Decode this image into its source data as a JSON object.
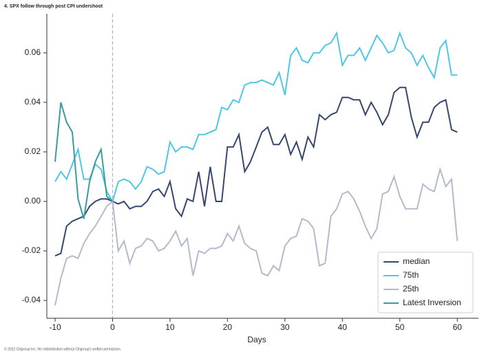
{
  "chart_data": {
    "type": "line",
    "title": "4. SPX follow through post CPI undershoot",
    "footnote": "© 2022 Citigroup Inc. No redistribution without Citigroup's written permission.",
    "x_label": "Days",
    "x": [
      -10,
      -9,
      -8,
      -7,
      -6,
      -5,
      -4,
      -3,
      -2,
      -1,
      0,
      1,
      2,
      3,
      4,
      5,
      6,
      7,
      8,
      9,
      10,
      11,
      12,
      13,
      14,
      15,
      16,
      17,
      18,
      19,
      20,
      21,
      22,
      23,
      24,
      25,
      26,
      27,
      28,
      29,
      30,
      31,
      32,
      33,
      34,
      35,
      36,
      37,
      38,
      39,
      40,
      41,
      42,
      43,
      44,
      45,
      46,
      47,
      48,
      49,
      50,
      51,
      52,
      53,
      54,
      55,
      56,
      57,
      58,
      59,
      60
    ],
    "series": [
      {
        "name": "median",
        "color": "#34466f",
        "values": [
          -0.022,
          -0.021,
          -0.01,
          -0.008,
          -0.007,
          -0.006,
          -0.002,
          0.0,
          0.001,
          0.001,
          0.0,
          -0.001,
          0.0,
          -0.003,
          -0.002,
          -0.002,
          0.0,
          0.004,
          0.005,
          0.002,
          0.008,
          -0.003,
          -0.006,
          0.001,
          0.0,
          0.012,
          -0.002,
          0.014,
          0.0,
          0.0,
          0.022,
          0.022,
          0.027,
          0.012,
          0.016,
          0.022,
          0.028,
          0.03,
          0.023,
          0.023,
          0.027,
          0.019,
          0.024,
          0.017,
          0.026,
          0.022,
          0.035,
          0.033,
          0.035,
          0.036,
          0.042,
          0.042,
          0.041,
          0.041,
          0.035,
          0.04,
          0.036,
          0.031,
          0.035,
          0.044,
          0.046,
          0.046,
          0.034,
          0.026,
          0.032,
          0.032,
          0.038,
          0.04,
          0.041,
          0.029,
          0.028
        ]
      },
      {
        "name": "75th",
        "color": "#4ec6e6",
        "values": [
          0.008,
          0.012,
          0.009,
          0.015,
          0.021,
          0.009,
          0.009,
          0.015,
          0.013,
          0.004,
          0.0,
          0.008,
          0.009,
          0.008,
          0.005,
          0.008,
          0.014,
          0.013,
          0.011,
          0.012,
          0.024,
          0.02,
          0.022,
          0.022,
          0.021,
          0.027,
          0.027,
          0.028,
          0.029,
          0.038,
          0.037,
          0.041,
          0.04,
          0.047,
          0.048,
          0.048,
          0.049,
          0.048,
          0.047,
          0.052,
          0.043,
          0.059,
          0.062,
          0.057,
          0.056,
          0.06,
          0.06,
          0.063,
          0.064,
          0.068,
          0.055,
          0.059,
          0.059,
          0.062,
          0.057,
          0.062,
          0.067,
          0.064,
          0.06,
          0.061,
          0.068,
          0.062,
          0.06,
          0.055,
          0.059,
          0.054,
          0.05,
          0.062,
          0.065,
          0.051,
          0.051
        ]
      },
      {
        "name": "25th",
        "color": "#b3bacd",
        "values": [
          -0.042,
          -0.031,
          -0.023,
          -0.022,
          -0.023,
          -0.017,
          -0.013,
          -0.01,
          -0.006,
          -0.002,
          0.0,
          -0.02,
          -0.016,
          -0.025,
          -0.019,
          -0.018,
          -0.015,
          -0.016,
          -0.02,
          -0.019,
          -0.016,
          -0.012,
          -0.018,
          -0.015,
          -0.03,
          -0.02,
          -0.021,
          -0.019,
          -0.019,
          -0.018,
          -0.013,
          -0.016,
          -0.01,
          -0.017,
          -0.019,
          -0.02,
          -0.029,
          -0.03,
          -0.026,
          -0.028,
          -0.018,
          -0.015,
          -0.014,
          -0.007,
          -0.008,
          -0.011,
          -0.026,
          -0.025,
          -0.006,
          -0.003,
          0.003,
          0.004,
          0.001,
          -0.004,
          -0.01,
          -0.015,
          -0.011,
          0.003,
          0.004,
          0.01,
          0.002,
          -0.003,
          -0.003,
          -0.003,
          0.007,
          0.005,
          0.004,
          0.013,
          0.006,
          0.009,
          -0.016
        ]
      },
      {
        "name": "Latest Inversion",
        "color": "#3a9b9b",
        "values": [
          0.016,
          0.04,
          0.032,
          0.028,
          0.001,
          -0.007,
          0.008,
          0.016,
          0.021,
          0.002,
          0.0,
          null,
          null,
          null,
          null,
          null,
          null,
          null,
          null,
          null,
          null,
          null,
          null,
          null,
          null,
          null,
          null,
          null,
          null,
          null,
          null,
          null,
          null,
          null,
          null,
          null,
          null,
          null,
          null,
          null,
          null,
          null,
          null,
          null,
          null,
          null,
          null,
          null,
          null,
          null,
          null,
          null,
          null,
          null,
          null,
          null,
          null,
          null,
          null,
          null,
          null,
          null,
          null,
          null,
          null,
          null,
          null,
          null,
          null,
          null,
          null
        ]
      }
    ],
    "xlim": [
      -11.44,
      63.7
    ],
    "ylim": [
      -0.0472,
      0.0758
    ],
    "xticks": [
      -10,
      0,
      10,
      20,
      30,
      40,
      50,
      60
    ],
    "yticks": [
      -0.04,
      -0.02,
      {
        "value": 0,
        "label": "0.00"
      },
      0.02,
      0.04,
      0.06
    ],
    "vline": 0,
    "legend": "lower right"
  }
}
